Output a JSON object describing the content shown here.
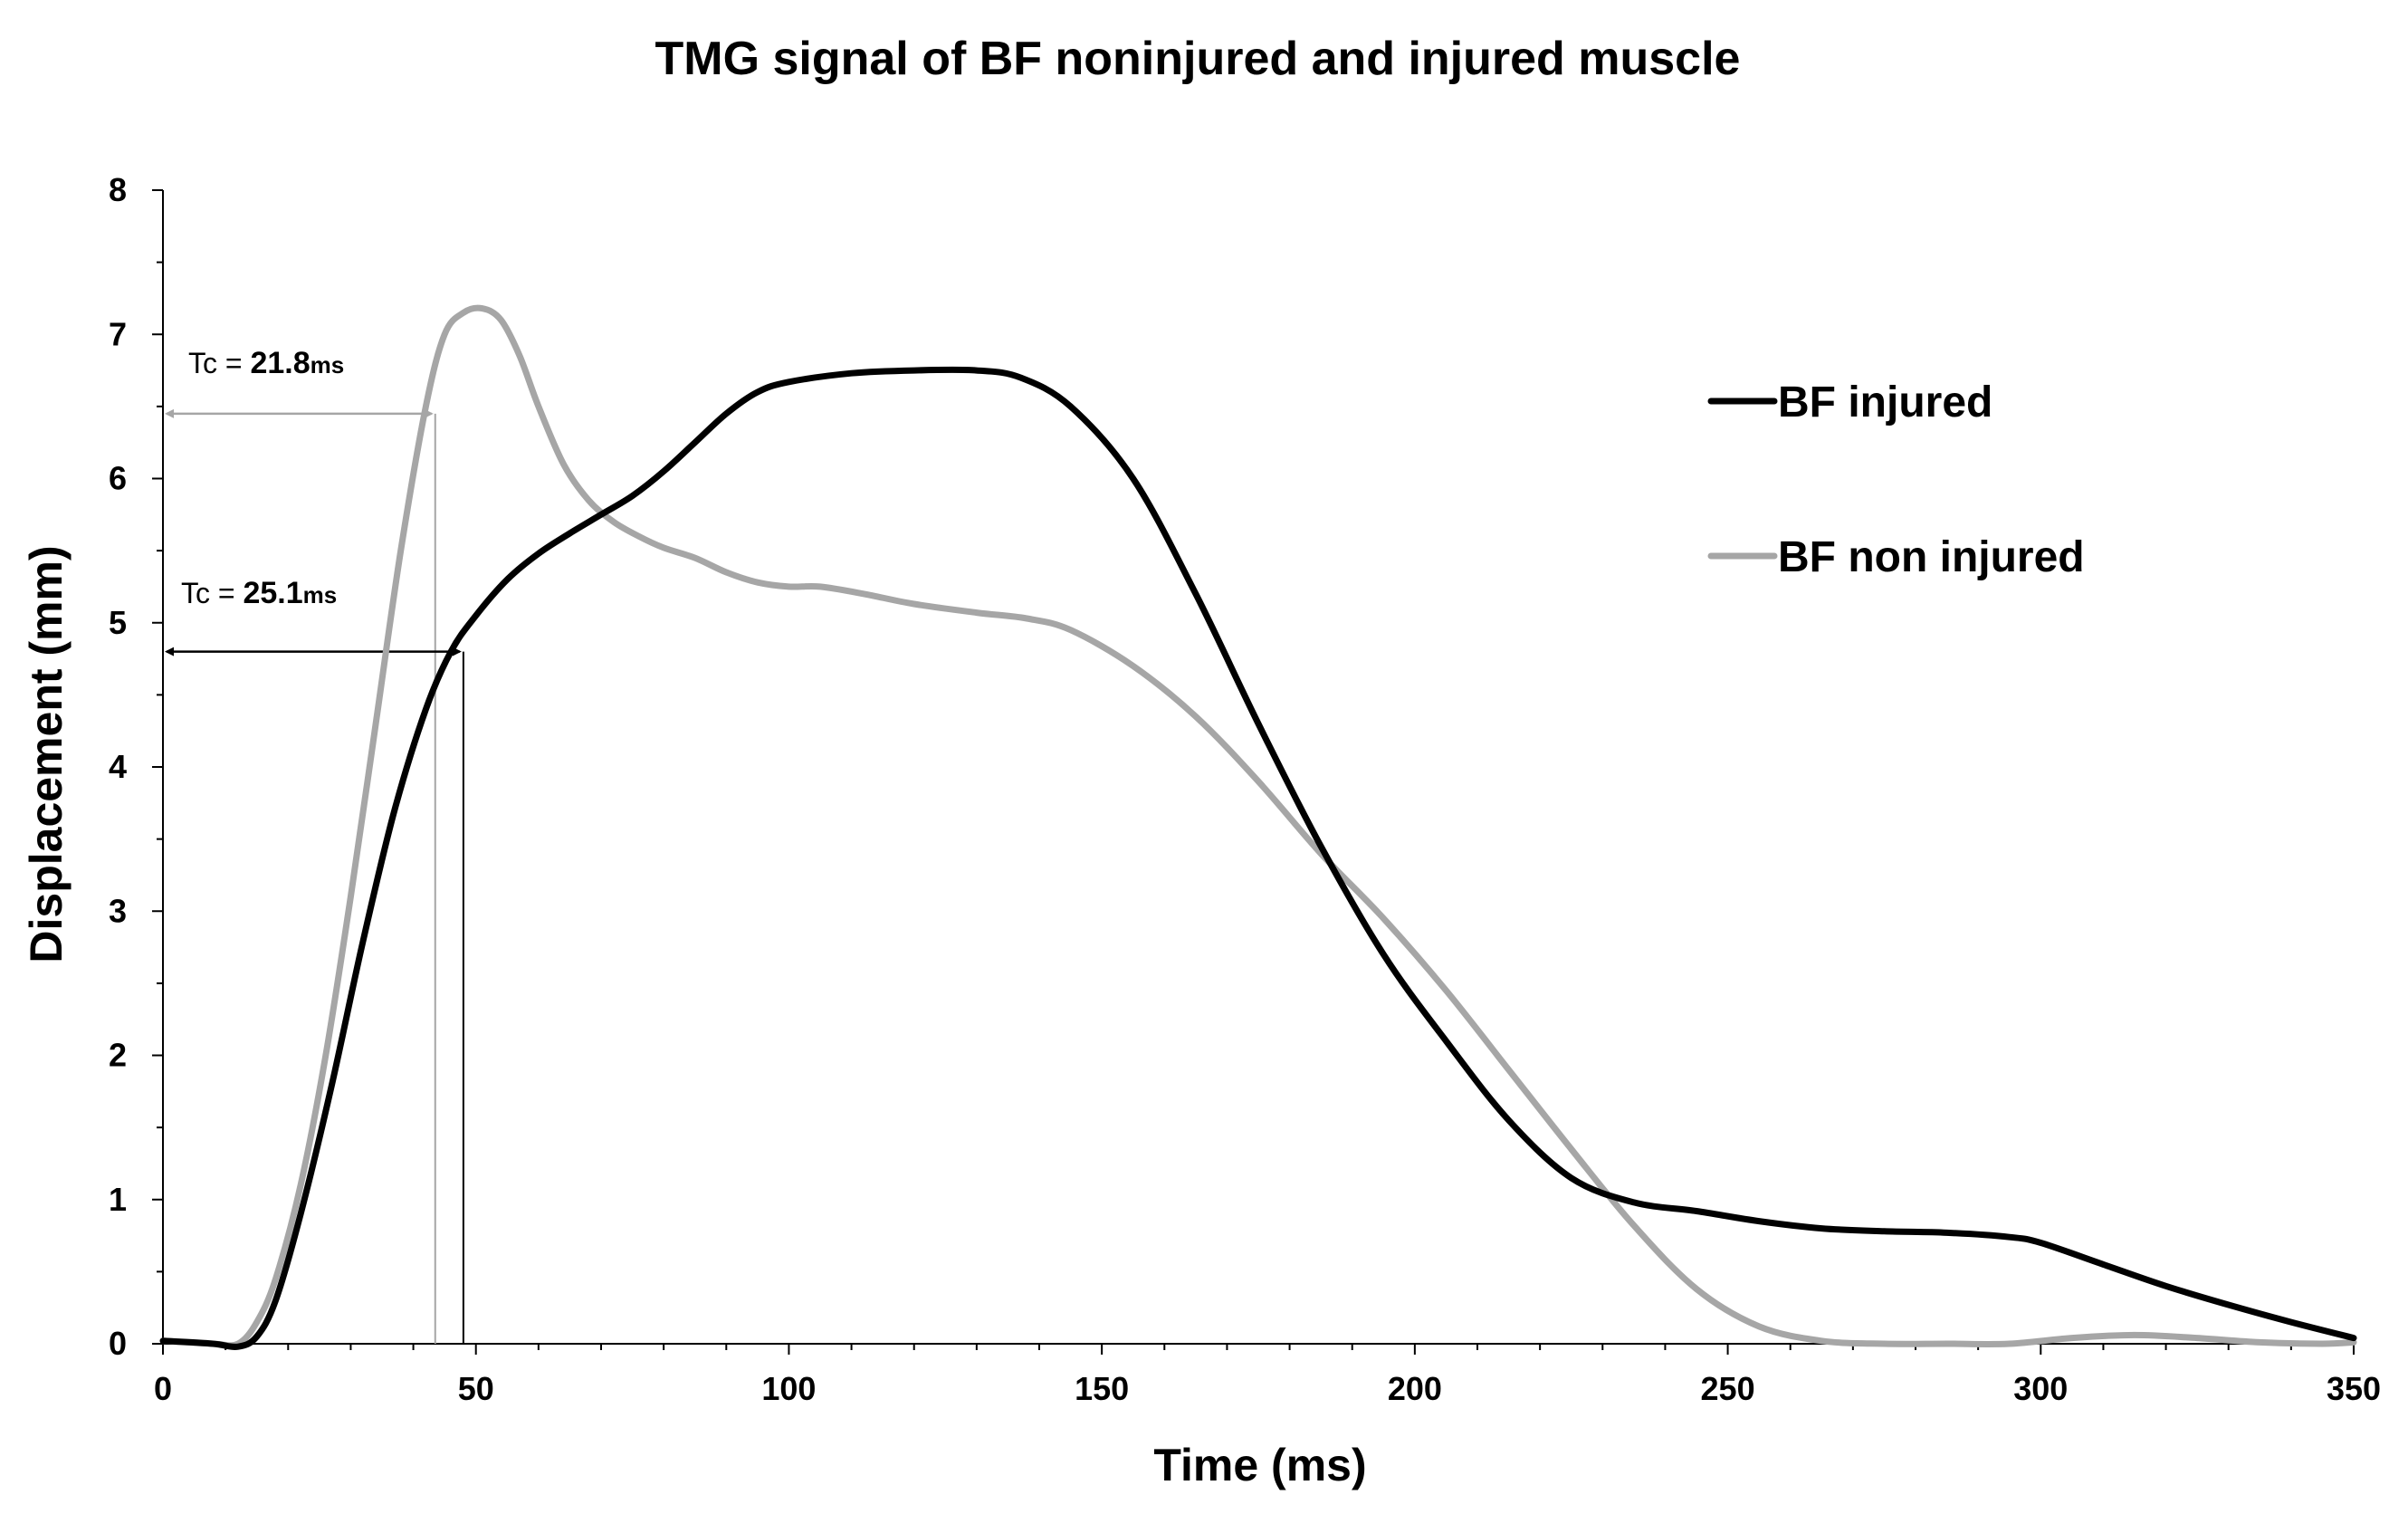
{
  "chart_data": {
    "type": "line",
    "title": "TMG signal of BF noninjured and injured muscle",
    "xlabel": "Time (ms)",
    "ylabel": "Displacement (mm)",
    "xlim": [
      0,
      350
    ],
    "ylim": [
      0,
      8
    ],
    "xticks": [
      0,
      50,
      100,
      150,
      200,
      250,
      300,
      350
    ],
    "yticks": [
      0,
      1,
      2,
      3,
      4,
      5,
      6,
      7,
      8
    ],
    "grid": false,
    "legend_position": "top-right",
    "series": [
      {
        "name": "BF injured",
        "color": "#000000",
        "x": [
          0,
          8,
          12,
          15,
          18,
          22,
          27,
          32,
          37,
          42,
          46,
          50,
          55,
          60,
          65,
          70,
          75,
          80,
          85,
          90,
          95,
          100,
          110,
          120,
          130,
          137,
          145,
          155,
          165,
          175,
          185,
          195,
          205,
          215,
          225,
          235,
          245,
          255,
          265,
          275,
          285,
          295,
          300,
          310,
          320,
          330,
          340,
          350
        ],
        "y": [
          0.02,
          0.0,
          -0.02,
          0.05,
          0.3,
          0.9,
          1.8,
          2.8,
          3.7,
          4.4,
          4.8,
          5.05,
          5.3,
          5.48,
          5.62,
          5.75,
          5.88,
          6.05,
          6.25,
          6.45,
          6.6,
          6.67,
          6.73,
          6.75,
          6.75,
          6.7,
          6.5,
          6.0,
          5.2,
          4.3,
          3.45,
          2.7,
          2.1,
          1.55,
          1.15,
          0.98,
          0.92,
          0.85,
          0.8,
          0.78,
          0.77,
          0.74,
          0.7,
          0.55,
          0.4,
          0.27,
          0.15,
          0.04
        ]
      },
      {
        "name": "BF non injured",
        "color": "#a6a6a6",
        "x": [
          0,
          8,
          12,
          15,
          18,
          22,
          26,
          30,
          34,
          38,
          42,
          45,
          48,
          51,
          54,
          57,
          60,
          64,
          68,
          72,
          76,
          80,
          85,
          90,
          95,
          100,
          105,
          112,
          120,
          130,
          138,
          145,
          155,
          165,
          175,
          185,
          195,
          205,
          215,
          225,
          235,
          245,
          255,
          265,
          275,
          285,
          295,
          305,
          315,
          325,
          335,
          345,
          350
        ],
        "y": [
          0.02,
          0.0,
          0.0,
          0.15,
          0.45,
          1.1,
          2.0,
          3.1,
          4.3,
          5.5,
          6.5,
          7.0,
          7.15,
          7.18,
          7.1,
          6.85,
          6.5,
          6.1,
          5.85,
          5.7,
          5.6,
          5.52,
          5.45,
          5.35,
          5.28,
          5.25,
          5.25,
          5.2,
          5.13,
          5.07,
          5.03,
          4.95,
          4.7,
          4.35,
          3.9,
          3.4,
          2.95,
          2.45,
          1.9,
          1.35,
          0.82,
          0.38,
          0.12,
          0.02,
          0.0,
          0.0,
          0.0,
          0.04,
          0.06,
          0.04,
          0.01,
          0.0,
          0.01
        ]
      }
    ],
    "annotations": [
      {
        "prefix": "Tc = ",
        "value": "21.8",
        "unit": "ms",
        "series": "BF non injured",
        "color": "#a6a6a6",
        "x_start": 0,
        "x_end": 43.5,
        "y": 6.45,
        "drop_x": 43.5
      },
      {
        "prefix": "Tc = ",
        "value": "25.1",
        "unit": "ms",
        "series": "BF injured",
        "color": "#000000",
        "x_start": 0,
        "x_end": 48,
        "y": 4.8,
        "drop_x": 48
      }
    ]
  }
}
